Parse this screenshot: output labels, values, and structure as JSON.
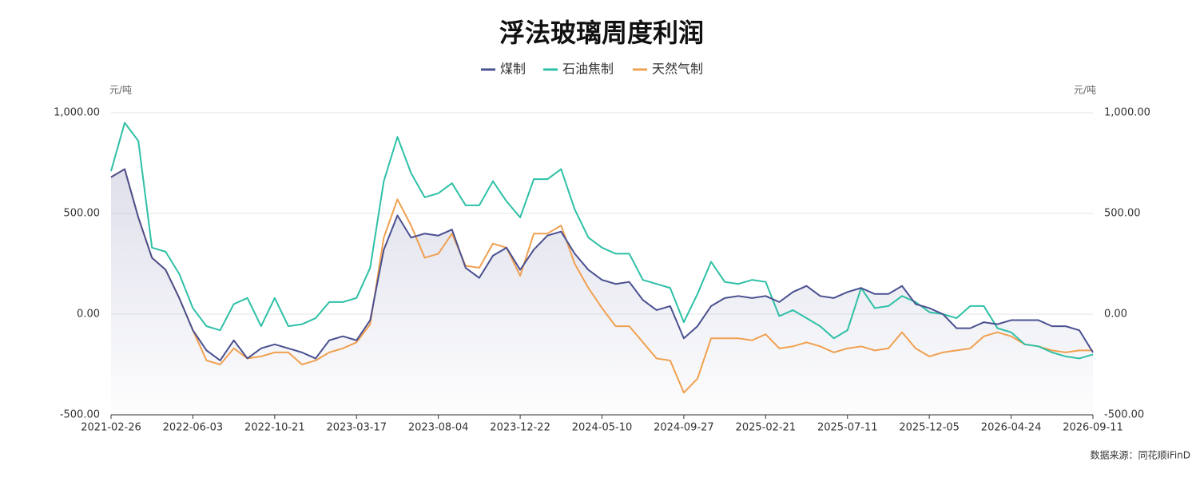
{
  "chart_data": {
    "type": "line",
    "title": "浮法玻璃周度利润",
    "y_axis_label": "元/吨",
    "y2_axis_label": "元/吨",
    "source": "数据来源：同花顺iFinD",
    "categories": [
      "2021-02-26",
      null,
      null,
      null,
      null,
      null,
      "2022-06-03",
      null,
      null,
      null,
      null,
      null,
      "2022-10-21",
      null,
      null,
      null,
      null,
      null,
      "2023-03-17",
      null,
      null,
      null,
      null,
      null,
      "2023-08-04",
      null,
      null,
      null,
      null,
      null,
      "2023-12-22",
      null,
      null,
      null,
      null,
      null,
      "2024-05-10",
      null,
      null,
      null,
      null,
      null,
      "2024-09-27",
      null,
      null,
      null,
      null,
      null,
      "2025-02-21",
      null,
      null,
      null,
      null,
      null,
      "2025-07-11",
      null,
      null,
      null,
      null,
      null,
      "2025-12-05",
      null,
      null,
      null,
      null,
      null,
      "2026-04-24",
      null,
      null,
      null,
      null,
      null,
      "2026-09-11"
    ],
    "series": [
      {
        "name": "煤制",
        "color": "#4a5090",
        "values": [
          680,
          720,
          480,
          280,
          220,
          80,
          -80,
          -180,
          -230,
          -130,
          -220,
          -170,
          -150,
          -170,
          -190,
          -220,
          -130,
          -110,
          -130,
          -30,
          320,
          490,
          380,
          400,
          390,
          420,
          230,
          180,
          290,
          330,
          220,
          320,
          390,
          410,
          300,
          220,
          170,
          150,
          160,
          70,
          20,
          40,
          -120,
          -60,
          40,
          80,
          90,
          80,
          90,
          60,
          110,
          140,
          90,
          80,
          110,
          130,
          100,
          100,
          140,
          50,
          30,
          0,
          -70,
          -70,
          -40,
          -50,
          -30,
          -30,
          -30,
          -60,
          -60,
          -80,
          -190
        ]
      },
      {
        "name": "石油焦制",
        "color": "#2ec0a6",
        "values": [
          710,
          950,
          860,
          330,
          310,
          200,
          30,
          -60,
          -80,
          50,
          80,
          -60,
          80,
          -60,
          -50,
          -20,
          60,
          60,
          80,
          230,
          660,
          880,
          700,
          580,
          600,
          650,
          540,
          540,
          660,
          560,
          480,
          670,
          670,
          720,
          520,
          380,
          330,
          300,
          300,
          170,
          150,
          130,
          -40,
          100,
          260,
          160,
          150,
          170,
          160,
          -10,
          20,
          -20,
          -60,
          -120,
          -80,
          130,
          30,
          40,
          90,
          60,
          10,
          0,
          -20,
          40,
          40,
          -70,
          -90,
          -150,
          -160,
          -190,
          -210,
          -220,
          -200
        ]
      },
      {
        "name": "天然气制",
        "color": "#f0a050",
        "values": [
          680,
          720,
          480,
          280,
          220,
          80,
          -80,
          -230,
          -250,
          -170,
          -220,
          -210,
          -190,
          -190,
          -250,
          -230,
          -190,
          -170,
          -140,
          -50,
          380,
          570,
          440,
          280,
          300,
          400,
          240,
          230,
          350,
          330,
          190,
          400,
          400,
          440,
          250,
          130,
          30,
          -60,
          -60,
          -140,
          -220,
          -230,
          -390,
          -320,
          -120,
          -120,
          -120,
          -130,
          -100,
          -170,
          -160,
          -140,
          -160,
          -190,
          -170,
          -160,
          -180,
          -170,
          -90,
          -170,
          -210,
          -190,
          -180,
          -170,
          -110,
          -90,
          -110,
          -150,
          -160,
          -180,
          -190,
          -180,
          -180
        ]
      }
    ],
    "ylim": [
      -500,
      1000
    ],
    "yticks": [
      {
        "value": -500,
        "label": "-500.00"
      },
      {
        "value": 0,
        "label": "0.00"
      },
      {
        "value": 500,
        "label": "500.00"
      },
      {
        "value": 1000,
        "label": "1,000.00"
      }
    ],
    "y2lim": [
      -500,
      1000
    ],
    "y2ticks": [
      {
        "value": -500,
        "label": "-500.00"
      },
      {
        "value": 0,
        "label": "0.00"
      },
      {
        "value": 500,
        "label": "500.00"
      },
      {
        "value": 1000,
        "label": "1,000.00"
      }
    ],
    "grid": true,
    "legend": "top"
  }
}
